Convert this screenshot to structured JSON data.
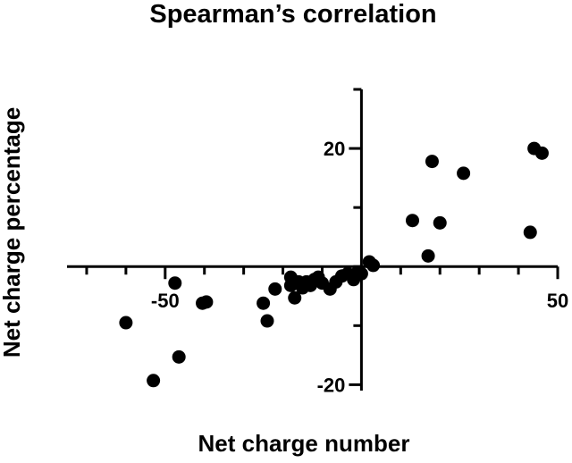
{
  "chart_data": {
    "type": "scatter",
    "title": "Spearman’s correlation",
    "xlabel": "Net charge number",
    "ylabel": "Net charge percentage",
    "xlim": [
      -75,
      50
    ],
    "ylim": [
      -21,
      30
    ],
    "x_ticks": [
      -50,
      50
    ],
    "y_ticks": [
      20,
      -20
    ],
    "x_tick_labels": [
      "-50",
      "50"
    ],
    "y_tick_labels": [
      "20",
      "-20"
    ],
    "grid": false,
    "legend": "none",
    "points": [
      {
        "x": -60,
        "y": -9.5
      },
      {
        "x": -53,
        "y": -19.3
      },
      {
        "x": -47.5,
        "y": -2.8
      },
      {
        "x": -46.5,
        "y": -15.3
      },
      {
        "x": -40.5,
        "y": -6.2
      },
      {
        "x": -39.5,
        "y": -6.0
      },
      {
        "x": -25,
        "y": -6.2
      },
      {
        "x": -24,
        "y": -9.2
      },
      {
        "x": -22,
        "y": -3.8
      },
      {
        "x": -18,
        "y": -1.8
      },
      {
        "x": -18,
        "y": -3.2
      },
      {
        "x": -17,
        "y": -5.3
      },
      {
        "x": -16,
        "y": -2.6
      },
      {
        "x": -15,
        "y": -3.6
      },
      {
        "x": -14,
        "y": -2.6
      },
      {
        "x": -13,
        "y": -3.2
      },
      {
        "x": -12,
        "y": -2.2
      },
      {
        "x": -11,
        "y": -1.8
      },
      {
        "x": -10,
        "y": -2.8
      },
      {
        "x": -8,
        "y": -3.8
      },
      {
        "x": -6.5,
        "y": -2.6
      },
      {
        "x": -5,
        "y": -1.6
      },
      {
        "x": -3.5,
        "y": -1.2
      },
      {
        "x": -2,
        "y": -2.2
      },
      {
        "x": -1,
        "y": -1.0
      },
      {
        "x": 0,
        "y": -1.2
      },
      {
        "x": 2,
        "y": 0.8
      },
      {
        "x": 3,
        "y": 0.2
      },
      {
        "x": 13,
        "y": 7.8
      },
      {
        "x": 17,
        "y": 1.8
      },
      {
        "x": 18,
        "y": 17.8
      },
      {
        "x": 20,
        "y": 7.4
      },
      {
        "x": 26,
        "y": 15.8
      },
      {
        "x": 43,
        "y": 5.8
      },
      {
        "x": 44,
        "y": 20
      },
      {
        "x": 46,
        "y": 19.2
      }
    ]
  }
}
